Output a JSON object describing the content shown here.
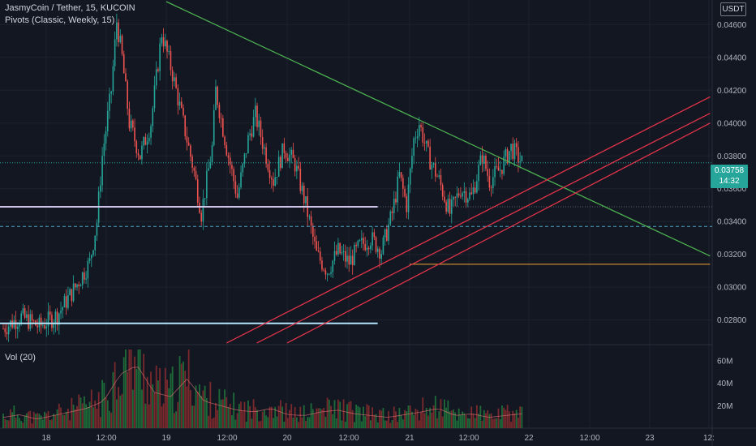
{
  "header": {
    "symbol_line": "JasmyCoin / Tether, 15, KUCOIN",
    "indicator_line": "Pivots (Classic, Weekly, 15)",
    "volume_label": "Vol (20)",
    "currency": "USDT"
  },
  "price_badge": {
    "price": "0.03758",
    "countdown": "14:32"
  },
  "colors": {
    "background": "#131722",
    "up": "#26a69a",
    "down": "#ef5350",
    "up_vol": "#1e6b3a",
    "down_vol": "#7a2a2d",
    "trend_down": "#4caf50",
    "channel": "#e0334a",
    "pivot_level": "#d1c4e9",
    "support_level": "#b3e5fc",
    "orange_level": "#f2a531"
  },
  "chart_data": {
    "type": "candlestick",
    "title": "JasmyCoin / Tether, 15, KUCOIN",
    "price_axis": {
      "ticks": [
        "0.04600",
        "0.04400",
        "0.04200",
        "0.04000",
        "0.03800",
        "0.03600",
        "0.03400",
        "0.03200",
        "0.03000",
        "0.02800"
      ],
      "ylim": [
        0.0265,
        0.0475
      ],
      "currency": "USDT"
    },
    "volume_axis": {
      "ticks": [
        "60M",
        "40M",
        "20M"
      ],
      "ylim": [
        0,
        70
      ]
    },
    "time_axis": {
      "ticks": [
        "18",
        "12:00",
        "19",
        "12:00",
        "20",
        "12:00",
        "21",
        "12:00",
        "22",
        "12:00",
        "23",
        "12:"
      ]
    },
    "last_price": 0.03758,
    "levels": [
      {
        "name": "pivot-upper",
        "price": 0.0349,
        "from": "18",
        "to": "20 18:00"
      },
      {
        "name": "pivot-lower",
        "price": 0.0278,
        "from": "18",
        "to": "20 18:00"
      },
      {
        "name": "orange",
        "price": 0.0314,
        "from": "21",
        "to": "23 12:00"
      }
    ],
    "trendlines": [
      {
        "name": "descending",
        "from": {
          "t": "19 00:00",
          "price": 0.0474
        },
        "to": {
          "t": "23 12:00",
          "price": 0.0319
        }
      },
      {
        "name": "channel-1",
        "from": {
          "t": "19 12:00",
          "price": 0.0266
        },
        "to": {
          "t": "23 12:00",
          "price": 0.0416
        }
      },
      {
        "name": "channel-2",
        "from": {
          "t": "19 18:00",
          "price": 0.0266
        },
        "to": {
          "t": "23 12:00",
          "price": 0.0406
        }
      },
      {
        "name": "channel-3",
        "from": {
          "t": "20 00:00",
          "price": 0.0266
        },
        "to": {
          "t": "23 12:00",
          "price": 0.04
        }
      }
    ],
    "price_path_anchors": [
      [
        0,
        0.0275
      ],
      [
        10,
        0.0282
      ],
      [
        20,
        0.0276
      ],
      [
        30,
        0.0283
      ],
      [
        40,
        0.03
      ],
      [
        48,
        0.0315
      ],
      [
        52,
        0.034
      ],
      [
        55,
        0.038
      ],
      [
        60,
        0.042
      ],
      [
        63,
        0.0462
      ],
      [
        66,
        0.044
      ],
      [
        70,
        0.04
      ],
      [
        76,
        0.038
      ],
      [
        82,
        0.04
      ],
      [
        88,
        0.0455
      ],
      [
        94,
        0.043
      ],
      [
        100,
        0.04
      ],
      [
        106,
        0.037
      ],
      [
        110,
        0.0345
      ],
      [
        116,
        0.0385
      ],
      [
        118,
        0.042
      ],
      [
        124,
        0.0385
      ],
      [
        130,
        0.0355
      ],
      [
        136,
        0.039
      ],
      [
        140,
        0.0405
      ],
      [
        146,
        0.038
      ],
      [
        150,
        0.0365
      ],
      [
        156,
        0.0385
      ],
      [
        162,
        0.0375
      ],
      [
        168,
        0.035
      ],
      [
        174,
        0.032
      ],
      [
        180,
        0.031
      ],
      [
        186,
        0.0322
      ],
      [
        192,
        0.0315
      ],
      [
        198,
        0.0325
      ],
      [
        204,
        0.033
      ],
      [
        210,
        0.0322
      ],
      [
        216,
        0.0345
      ],
      [
        220,
        0.0368
      ],
      [
        224,
        0.035
      ],
      [
        228,
        0.039
      ],
      [
        231,
        0.04
      ],
      [
        236,
        0.038
      ],
      [
        242,
        0.0365
      ],
      [
        248,
        0.0345
      ],
      [
        254,
        0.036
      ],
      [
        260,
        0.0355
      ],
      [
        266,
        0.038
      ],
      [
        270,
        0.0365
      ],
      [
        276,
        0.0372
      ],
      [
        282,
        0.0385
      ],
      [
        288,
        0.0376
      ]
    ],
    "volume_profile_M": [
      12,
      15,
      10,
      14,
      18,
      22,
      30,
      60,
      70,
      40,
      35,
      55,
      30,
      25,
      20,
      18,
      22,
      15,
      14,
      18,
      20,
      16,
      14,
      12,
      15,
      18,
      22,
      14,
      16,
      12,
      14,
      16
    ]
  }
}
